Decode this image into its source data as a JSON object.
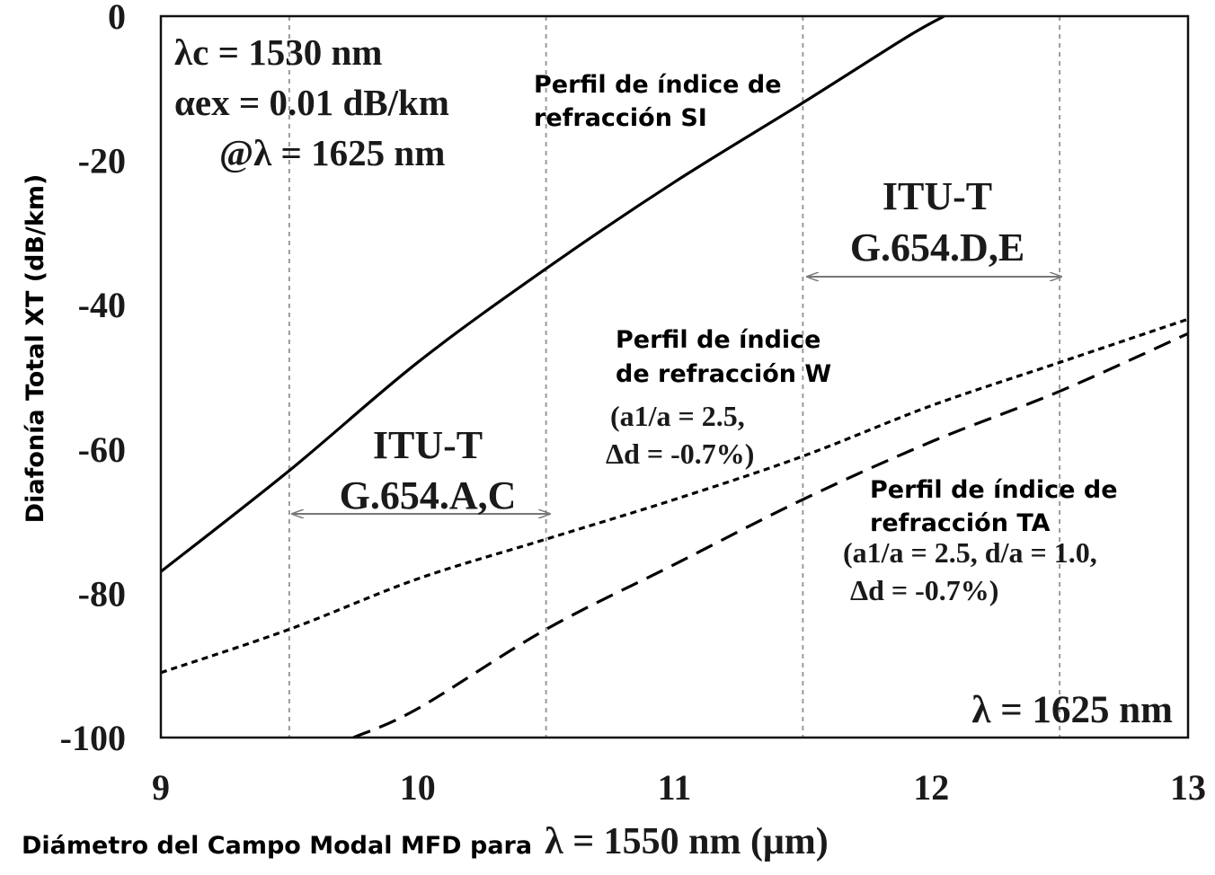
{
  "chart_data": {
    "type": "line",
    "xlabel": "Diámetro del Campo Modal MFD para",
    "xlabel_lambda": "λ = 1550 nm (μm)",
    "ylabel": "Diafonía Total XT (dB/km)",
    "xlim": [
      9,
      13
    ],
    "ylim": [
      -100,
      0
    ],
    "x_ticks": [
      "9",
      "10",
      "11",
      "12",
      "13"
    ],
    "y_ticks": [
      "0",
      "-20",
      "-40",
      "-60",
      "-80",
      "-100"
    ],
    "vertical_reference_lines": [
      9.5,
      10.5,
      11.5,
      12.5
    ],
    "series": [
      {
        "name": "Perfil de índice de refracción SI",
        "style": "solid",
        "x": [
          9.0,
          9.5,
          10.0,
          10.5,
          11.0,
          11.5,
          11.9,
          12.05
        ],
        "y": [
          -77,
          -63,
          -48,
          -35,
          -23,
          -12,
          -3,
          0
        ]
      },
      {
        "name": "Perfil de índice de refracción W",
        "style": "dotted",
        "x": [
          9.0,
          9.5,
          10.0,
          10.5,
          11.0,
          11.5,
          12.0,
          12.5,
          13.0
        ],
        "y": [
          -91,
          -85,
          -78,
          -72.5,
          -67,
          -61,
          -54,
          -48,
          -42
        ]
      },
      {
        "name": "Perfil de índice de refracción TA",
        "style": "dashed",
        "x": [
          9.75,
          10.0,
          10.5,
          11.0,
          11.5,
          12.0,
          12.5,
          13.0
        ],
        "y": [
          -100,
          -96,
          -85,
          -76,
          -67,
          -59,
          -52,
          -44
        ]
      }
    ],
    "annotations": {
      "params_line1": "λc = 1530 nm",
      "params_line2": "αex = 0.01 dB/km",
      "params_line3": "@λ = 1625 nm",
      "itu_ac_line1": "ITU-T",
      "itu_ac_line2": "G.654.A,C",
      "itu_de_line1": "ITU-T",
      "itu_de_line2": "G.654.D,E",
      "si_line1": "Perfil de índice de",
      "si_line2": "refracción SI",
      "w_line1": "Perfil de índice",
      "w_line2": "de refracción W",
      "w_params_line1": "(a1/a = 2.5,",
      "w_params_line2": "Δd = -0.7%)",
      "ta_line1": "Perfil de índice de",
      "ta_line2": "refracción TA",
      "ta_params_line1": "(a1/a = 2.5, d/a = 1.0,",
      "ta_params_line2": "Δd = -0.7%)",
      "lambda_bottom": "λ = 1625 nm"
    },
    "ranges": [
      {
        "label": "G.654.A,C",
        "from": 9.5,
        "to": 10.5
      },
      {
        "label": "G.654.D,E",
        "from": 11.5,
        "to": 12.5
      }
    ],
    "grid": false,
    "legend": "none"
  }
}
